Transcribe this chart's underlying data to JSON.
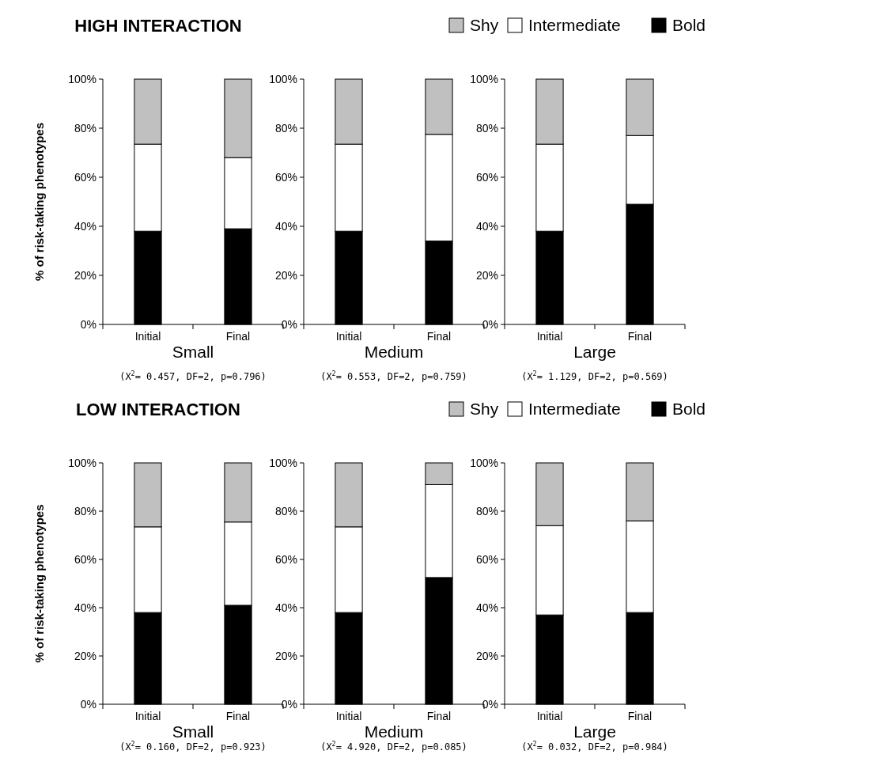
{
  "chart_data": [
    {
      "type": "bar",
      "stacked": true,
      "title": "HIGH INTERACTION",
      "ylabel": "% of risk-taking phenotypes",
      "xlabel": "Small",
      "annotations": [
        "(X$^{2}$= 0.457, DF=2, p=0.796)"
      ],
      "categories": [
        "Initial",
        "Final"
      ],
      "legend": false,
      "ylim": [
        0,
        100
      ],
      "yticks": [
        {
          "value": 0,
          "label": "0%"
        },
        {
          "value": 20,
          "label": "20%"
        },
        {
          "value": 40,
          "label": "40%"
        },
        {
          "value": 60,
          "label": "60%"
        },
        {
          "value": 80,
          "label": "80%"
        },
        {
          "value": 100,
          "label": "100%"
        }
      ],
      "series": [
        {
          "color": "#000000",
          "values": [
            38,
            39
          ]
        },
        {
          "color": "#ffffff",
          "values": [
            35.5,
            29
          ]
        },
        {
          "color": "#c0c0c0",
          "values": [
            26.5,
            32
          ]
        }
      ]
    },
    {
      "type": "bar",
      "stacked": true,
      "xlabel": "Medium",
      "annotations": [
        "(X$^{2}$= 0.553, DF=2, p=0.759)"
      ],
      "categories": [
        "Initial",
        "Final"
      ],
      "legend": false,
      "ylim": [
        0,
        100
      ],
      "yticks": [
        {
          "value": 0,
          "label": "0%"
        },
        {
          "value": 20,
          "label": "20%"
        },
        {
          "value": 40,
          "label": "40%"
        },
        {
          "value": 60,
          "label": "60%"
        },
        {
          "value": 80,
          "label": "80%"
        },
        {
          "value": 100,
          "label": "100%"
        }
      ],
      "series": [
        {
          "color": "#000000",
          "values": [
            38,
            34
          ]
        },
        {
          "color": "#ffffff",
          "values": [
            35.5,
            43.5
          ]
        },
        {
          "color": "#c0c0c0",
          "values": [
            26.5,
            22.5
          ]
        }
      ]
    },
    {
      "type": "bar",
      "stacked": true,
      "xlabel": "Large",
      "annotations": [
        "(X$^{2}$= 1.129, DF=2, p=0.569)"
      ],
      "categories": [
        "Initial",
        "Final"
      ],
      "legend": "top",
      "ylim": [
        0,
        100
      ],
      "yticks": [
        {
          "value": 0,
          "label": "0%"
        },
        {
          "value": 20,
          "label": "20%"
        },
        {
          "value": 40,
          "label": "40%"
        },
        {
          "value": 60,
          "label": "60%"
        },
        {
          "value": 80,
          "label": "80%"
        },
        {
          "value": 100,
          "label": "100%"
        }
      ],
      "series": [
        {
          "name": "Bold",
          "color": "#000000",
          "values": [
            38,
            49
          ]
        },
        {
          "name": "Intermediate",
          "color": "#ffffff",
          "values": [
            35.5,
            28
          ]
        },
        {
          "name": "Shy",
          "color": "#c0c0c0",
          "values": [
            26.5,
            23
          ]
        }
      ]
    },
    {
      "type": "bar",
      "stacked": true,
      "title": "LOW INTERACTION",
      "ylabel": "% of risk-taking phenotypes",
      "xlabel": "Small",
      "annotations": [
        "(X$^{2}$= 0.160, DF=2, p=0.923)"
      ],
      "categories": [
        "Initial",
        "Final"
      ],
      "legend": false,
      "ylim": [
        0,
        100
      ],
      "yticks": [
        {
          "value": 0,
          "label": "0%"
        },
        {
          "value": 20,
          "label": "20%"
        },
        {
          "value": 40,
          "label": "40%"
        },
        {
          "value": 60,
          "label": "60%"
        },
        {
          "value": 80,
          "label": "80%"
        },
        {
          "value": 100,
          "label": "100%"
        }
      ],
      "series": [
        {
          "color": "#000000",
          "values": [
            38,
            41
          ]
        },
        {
          "color": "#ffffff",
          "values": [
            35.5,
            34.5
          ]
        },
        {
          "color": "#c0c0c0",
          "values": [
            26.5,
            24.5
          ]
        }
      ]
    },
    {
      "type": "bar",
      "stacked": true,
      "xlabel": "Medium",
      "annotations": [
        "(X$^{2}$= 4.920, DF=2, p=0.085)"
      ],
      "categories": [
        "Initial",
        "Final"
      ],
      "legend": false,
      "ylim": [
        0,
        100
      ],
      "yticks": [
        {
          "value": 0,
          "label": "0%"
        },
        {
          "value": 20,
          "label": "20%"
        },
        {
          "value": 40,
          "label": "40%"
        },
        {
          "value": 60,
          "label": "60%"
        },
        {
          "value": 80,
          "label": "80%"
        },
        {
          "value": 100,
          "label": "100%"
        }
      ],
      "series": [
        {
          "color": "#000000",
          "values": [
            38,
            52.5
          ]
        },
        {
          "color": "#ffffff",
          "values": [
            35.5,
            38.5
          ]
        },
        {
          "color": "#c0c0c0",
          "values": [
            26.5,
            9
          ]
        }
      ]
    },
    {
      "type": "bar",
      "stacked": true,
      "xlabel": "Large",
      "annotations": [
        "(X$^{2}$= 0.032, DF=2, p=0.984)"
      ],
      "categories": [
        "Initial",
        "Final"
      ],
      "legend": "top",
      "ylim": [
        0,
        100
      ],
      "yticks": [
        {
          "value": 0,
          "label": "0%"
        },
        {
          "value": 20,
          "label": "20%"
        },
        {
          "value": 40,
          "label": "40%"
        },
        {
          "value": 60,
          "label": "60%"
        },
        {
          "value": 80,
          "label": "80%"
        },
        {
          "value": 100,
          "label": "100%"
        }
      ],
      "series": [
        {
          "name": "Bold",
          "color": "#000000",
          "values": [
            37,
            38
          ]
        },
        {
          "name": "Intermediate",
          "color": "#ffffff",
          "values": [
            37,
            38
          ]
        },
        {
          "name": "Shy",
          "color": "#c0c0c0",
          "values": [
            26,
            24
          ]
        }
      ]
    }
  ]
}
